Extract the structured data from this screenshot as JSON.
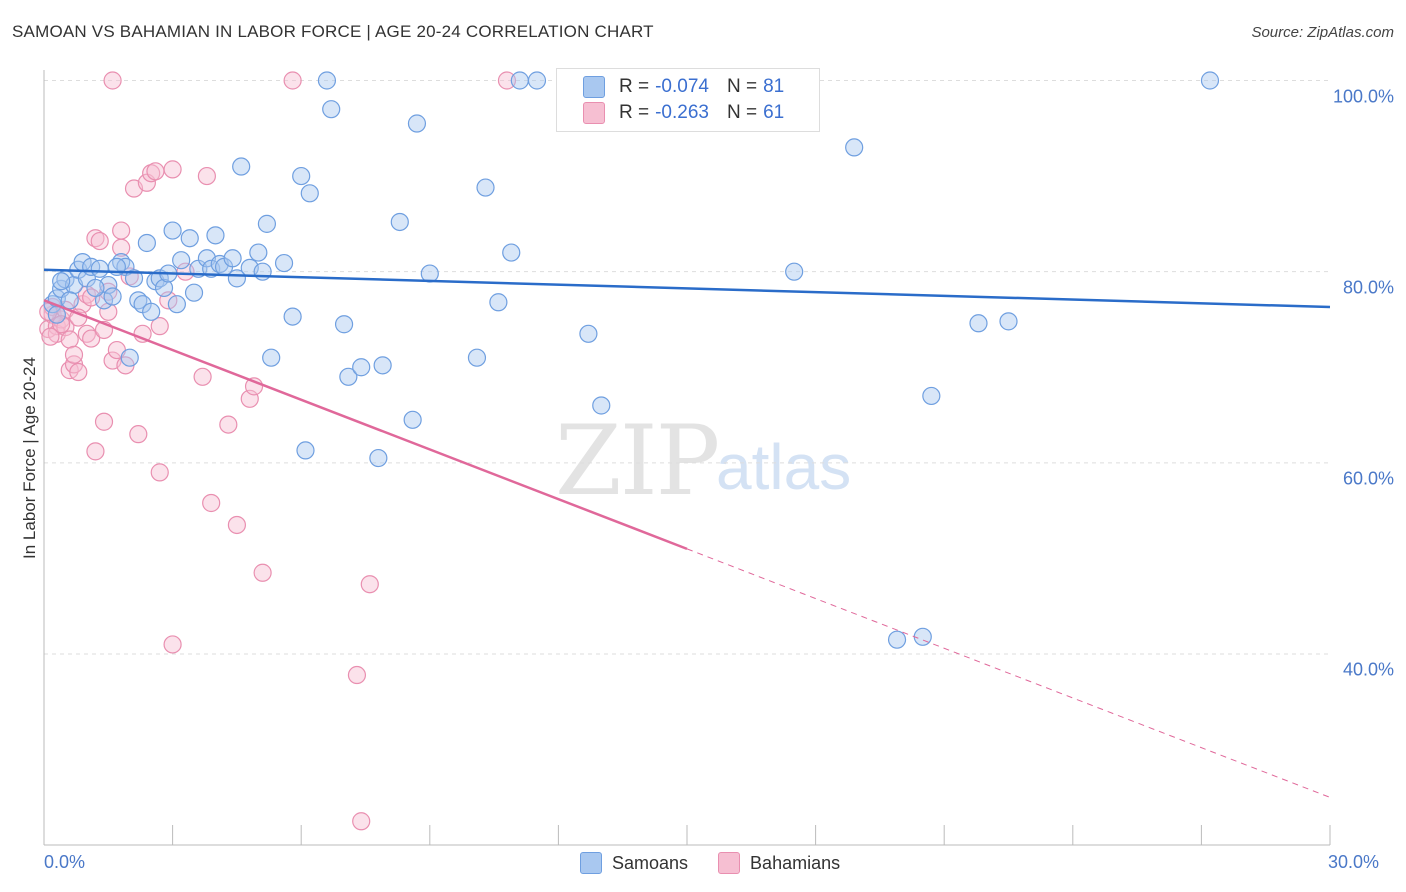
{
  "header": {
    "title": "SAMOAN VS BAHAMIAN IN LABOR FORCE | AGE 20-24 CORRELATION CHART",
    "source": "Source: ZipAtlas.com"
  },
  "watermark": {
    "zip": "ZIP",
    "atlas": "atlas"
  },
  "legend": {
    "samoans": {
      "r_label": "R =",
      "r_value": "-0.074",
      "n_label": "N =",
      "n_value": "81"
    },
    "bahamians": {
      "r_label": "R =",
      "r_value": "-0.263",
      "n_label": "N =",
      "n_value": "61"
    }
  },
  "bottom_legend": {
    "samoans": "Samoans",
    "bahamians": "Bahamians"
  },
  "colors": {
    "samoans_fill": "#a9c8f0",
    "samoans_stroke": "#6f9fe0",
    "samoans_line": "#2a6cc9",
    "bahamians_fill": "#f6bfd2",
    "bahamians_stroke": "#e98fb0",
    "bahamians_line": "#e0689a",
    "tick_text": "#4a78c8",
    "grid": "#dddddd"
  },
  "chart_data": {
    "type": "scatter",
    "title": "SAMOAN VS BAHAMIAN IN LABOR FORCE | AGE 20-24 CORRELATION CHART",
    "xlabel": "",
    "ylabel": "In Labor Force | Age 20-24",
    "xlim": [
      0,
      30
    ],
    "ylim": [
      20,
      102
    ],
    "x_ticks": [
      "0.0%",
      "30.0%"
    ],
    "y_ticks": [
      {
        "value": 100,
        "label": "100.0%"
      },
      {
        "value": 80,
        "label": "80.0%"
      },
      {
        "value": 60,
        "label": "60.0%"
      },
      {
        "value": 40,
        "label": "40.0%"
      }
    ],
    "grid": true,
    "series": [
      {
        "name": "Samoans",
        "trend": {
          "x0": 0,
          "y0": 80.2,
          "x1": 30,
          "y1": 76.3
        },
        "points": [
          [
            0.2,
            76.6
          ],
          [
            0.3,
            77.2
          ],
          [
            0.4,
            78.2
          ],
          [
            0.5,
            79.2
          ],
          [
            0.7,
            78.6
          ],
          [
            0.8,
            80.2
          ],
          [
            0.9,
            81.0
          ],
          [
            1.0,
            79.3
          ],
          [
            1.1,
            80.5
          ],
          [
            1.3,
            80.3
          ],
          [
            1.4,
            77.0
          ],
          [
            1.5,
            78.6
          ],
          [
            1.6,
            77.4
          ],
          [
            1.8,
            81.0
          ],
          [
            1.9,
            80.5
          ],
          [
            2.0,
            71.0
          ],
          [
            2.2,
            77.0
          ],
          [
            2.3,
            76.6
          ],
          [
            2.4,
            83.0
          ],
          [
            2.5,
            75.8
          ],
          [
            2.6,
            79.0
          ],
          [
            2.7,
            79.3
          ],
          [
            2.8,
            78.3
          ],
          [
            2.9,
            79.8
          ],
          [
            3.0,
            84.3
          ],
          [
            3.1,
            76.6
          ],
          [
            3.2,
            81.2
          ],
          [
            3.4,
            83.5
          ],
          [
            3.5,
            77.8
          ],
          [
            3.6,
            80.3
          ],
          [
            3.8,
            81.4
          ],
          [
            3.9,
            80.3
          ],
          [
            4.0,
            83.8
          ],
          [
            4.1,
            80.8
          ],
          [
            4.2,
            80.5
          ],
          [
            4.4,
            81.4
          ],
          [
            4.5,
            79.3
          ],
          [
            4.6,
            91.0
          ],
          [
            4.8,
            80.4
          ],
          [
            5.0,
            82.0
          ],
          [
            5.1,
            80.0
          ],
          [
            5.2,
            85.0
          ],
          [
            5.3,
            71.0
          ],
          [
            5.6,
            80.9
          ],
          [
            5.8,
            75.3
          ],
          [
            6.0,
            90.0
          ],
          [
            6.1,
            61.3
          ],
          [
            6.2,
            88.2
          ],
          [
            6.6,
            100.0
          ],
          [
            6.7,
            97.0
          ],
          [
            7.0,
            74.5
          ],
          [
            7.1,
            69.0
          ],
          [
            7.4,
            70.0
          ],
          [
            7.8,
            60.5
          ],
          [
            7.9,
            70.2
          ],
          [
            8.3,
            85.2
          ],
          [
            8.6,
            64.5
          ],
          [
            8.7,
            95.5
          ],
          [
            9.0,
            79.8
          ],
          [
            10.1,
            71.0
          ],
          [
            10.3,
            88.8
          ],
          [
            10.6,
            76.8
          ],
          [
            10.9,
            82.0
          ],
          [
            11.1,
            100.0
          ],
          [
            11.5,
            100.0
          ],
          [
            12.7,
            73.5
          ],
          [
            13.0,
            66.0
          ],
          [
            17.5,
            80.0
          ],
          [
            18.9,
            93.0
          ],
          [
            19.9,
            41.5
          ],
          [
            20.5,
            41.8
          ],
          [
            20.7,
            67.0
          ],
          [
            21.8,
            74.6
          ],
          [
            22.5,
            74.8
          ],
          [
            27.2,
            100.0
          ],
          [
            0.3,
            75.5
          ],
          [
            0.6,
            77.0
          ],
          [
            1.2,
            78.3
          ],
          [
            1.7,
            80.5
          ],
          [
            0.4,
            79.0
          ],
          [
            2.1,
            79.3
          ]
        ]
      },
      {
        "name": "Bahamians",
        "trend": {
          "x0": 0,
          "y0": 77.0,
          "x1": 15,
          "y1": 51.0
        },
        "trend_dashed": {
          "x0": 15,
          "y0": 51.0,
          "x1": 30,
          "y1": 25.0
        },
        "points": [
          [
            0.1,
            74.0
          ],
          [
            0.2,
            75.5
          ],
          [
            0.2,
            76.3
          ],
          [
            0.3,
            74.3
          ],
          [
            0.3,
            73.5
          ],
          [
            0.4,
            75.0
          ],
          [
            0.5,
            74.2
          ],
          [
            0.5,
            76.0
          ],
          [
            0.6,
            72.9
          ],
          [
            0.6,
            69.7
          ],
          [
            0.7,
            70.3
          ],
          [
            0.7,
            71.3
          ],
          [
            0.8,
            69.5
          ],
          [
            0.9,
            76.6
          ],
          [
            1.0,
            73.5
          ],
          [
            1.0,
            77.6
          ],
          [
            1.1,
            73.0
          ],
          [
            1.2,
            83.5
          ],
          [
            1.2,
            61.2
          ],
          [
            1.3,
            83.2
          ],
          [
            1.4,
            73.9
          ],
          [
            1.4,
            64.3
          ],
          [
            1.5,
            77.9
          ],
          [
            1.6,
            70.7
          ],
          [
            1.6,
            100.0
          ],
          [
            1.7,
            71.8
          ],
          [
            1.8,
            84.3
          ],
          [
            1.8,
            82.5
          ],
          [
            1.9,
            70.2
          ],
          [
            2.0,
            79.5
          ],
          [
            2.1,
            88.7
          ],
          [
            2.2,
            63.0
          ],
          [
            2.3,
            73.5
          ],
          [
            2.4,
            89.3
          ],
          [
            2.5,
            90.3
          ],
          [
            2.6,
            90.5
          ],
          [
            2.7,
            74.3
          ],
          [
            2.7,
            59.0
          ],
          [
            2.9,
            77.0
          ],
          [
            3.0,
            90.7
          ],
          [
            3.0,
            41.0
          ],
          [
            3.3,
            80.0
          ],
          [
            3.7,
            69.0
          ],
          [
            3.8,
            90.0
          ],
          [
            3.9,
            55.8
          ],
          [
            4.3,
            64.0
          ],
          [
            4.5,
            53.5
          ],
          [
            4.8,
            66.7
          ],
          [
            4.9,
            68.0
          ],
          [
            5.1,
            48.5
          ],
          [
            5.8,
            100.0
          ],
          [
            7.3,
            37.8
          ],
          [
            7.4,
            22.5
          ],
          [
            7.6,
            47.3
          ],
          [
            10.8,
            100.0
          ],
          [
            0.1,
            75.8
          ],
          [
            0.4,
            74.5
          ],
          [
            0.8,
            75.2
          ],
          [
            1.5,
            75.8
          ],
          [
            0.15,
            73.2
          ],
          [
            1.1,
            77.3
          ]
        ]
      }
    ]
  }
}
